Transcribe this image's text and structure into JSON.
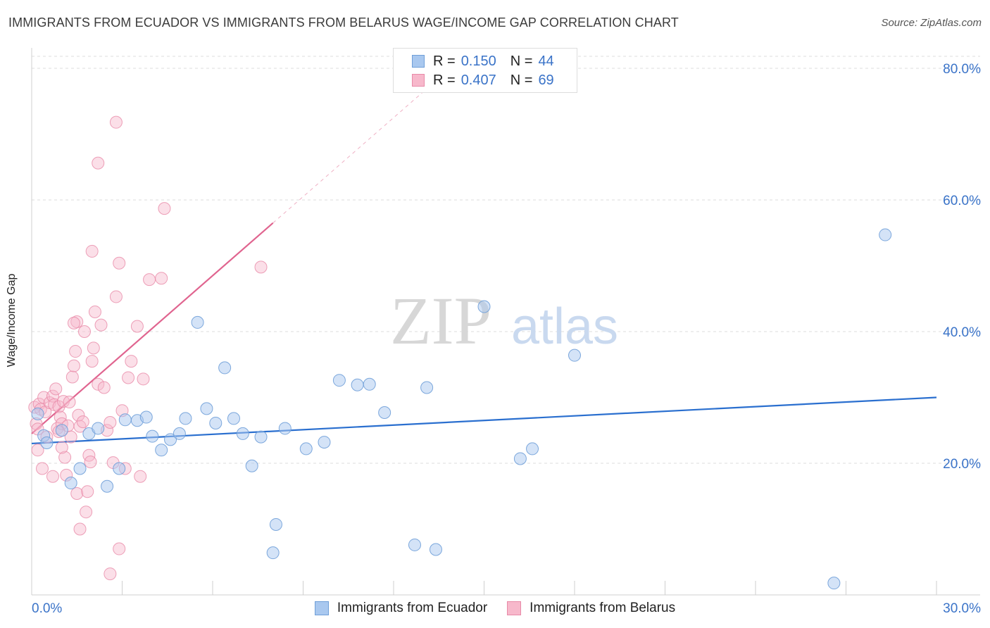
{
  "title": "IMMIGRANTS FROM ECUADOR VS IMMIGRANTS FROM BELARUS WAGE/INCOME GAP CORRELATION CHART",
  "source": "Source: ZipAtlas.com",
  "watermark": {
    "zip": "ZIP",
    "atlas": "atlas"
  },
  "legend_top": {
    "rows": [
      {
        "r_label": "R =",
        "r_value": "0.150",
        "n_label": "N =",
        "n_value": "44"
      },
      {
        "r_label": "R =",
        "r_value": "0.407",
        "n_label": "N =",
        "n_value": "69"
      }
    ]
  },
  "legend_bottom": [
    "Immigrants from Ecuador",
    "Immigrants from Belarus"
  ],
  "chart_data": {
    "type": "scatter",
    "title": "IMMIGRANTS FROM ECUADOR VS IMMIGRANTS FROM BELARUS WAGE/INCOME GAP CORRELATION CHART",
    "xlabel": "",
    "ylabel": "Wage/Income Gap",
    "xlim": [
      0,
      30
    ],
    "ylim": [
      0,
      80
    ],
    "x_tick_labels": [
      {
        "value": 0,
        "label": "0.0%"
      },
      {
        "value": 30,
        "label": "30.0%"
      }
    ],
    "y_tick_labels": [
      {
        "value": 20,
        "label": "20.0%"
      },
      {
        "value": 40,
        "label": "40.0%"
      },
      {
        "value": 60,
        "label": "60.0%"
      },
      {
        "value": 80,
        "label": "80.0%"
      }
    ],
    "colors": {
      "ecuador_fill": "#a9c8ef",
      "ecuador_stroke": "#6f9fd8",
      "ecuador_line": "#2a6fcf",
      "belarus_fill": "#f7b8cb",
      "belarus_stroke": "#e88aa8",
      "belarus_line": "#e0648f"
    },
    "series": [
      {
        "name": "Immigrants from Ecuador",
        "R": 0.15,
        "N": 44,
        "trend": {
          "x0": 0,
          "y0": 23.0,
          "x1": 30,
          "y1": 30.0
        },
        "points": [
          [
            0.2,
            27.5
          ],
          [
            0.4,
            24.2
          ],
          [
            0.5,
            23.1
          ],
          [
            1.0,
            25.0
          ],
          [
            1.6,
            19.2
          ],
          [
            1.9,
            24.5
          ],
          [
            2.2,
            25.3
          ],
          [
            2.5,
            16.5
          ],
          [
            2.9,
            19.2
          ],
          [
            3.1,
            26.6
          ],
          [
            3.5,
            26.5
          ],
          [
            3.8,
            27.0
          ],
          [
            4.0,
            24.1
          ],
          [
            4.3,
            22.0
          ],
          [
            4.6,
            23.6
          ],
          [
            4.9,
            24.5
          ],
          [
            5.1,
            26.8
          ],
          [
            5.5,
            41.4
          ],
          [
            5.8,
            28.3
          ],
          [
            6.1,
            26.1
          ],
          [
            6.4,
            34.5
          ],
          [
            6.7,
            26.8
          ],
          [
            7.0,
            24.5
          ],
          [
            7.3,
            19.6
          ],
          [
            7.6,
            24.0
          ],
          [
            8.1,
            10.7
          ],
          [
            8.4,
            25.3
          ],
          [
            9.1,
            22.2
          ],
          [
            9.7,
            23.2
          ],
          [
            10.2,
            32.6
          ],
          [
            10.8,
            31.9
          ],
          [
            11.2,
            32.0
          ],
          [
            11.7,
            27.7
          ],
          [
            12.7,
            7.6
          ],
          [
            13.1,
            31.5
          ],
          [
            13.4,
            6.9
          ],
          [
            15.0,
            43.8
          ],
          [
            16.2,
            20.7
          ],
          [
            16.6,
            22.2
          ],
          [
            18.0,
            36.4
          ],
          [
            26.6,
            1.8
          ],
          [
            28.3,
            54.7
          ],
          [
            1.3,
            17.0
          ],
          [
            8.0,
            6.4
          ]
        ]
      },
      {
        "name": "Immigrants from Belarus",
        "R": 0.407,
        "N": 69,
        "trend": {
          "x0": 0,
          "y0": 24.5,
          "x1": 8.0,
          "y1": 56.5
        },
        "trend_dashed_to": {
          "x": 14.0,
          "y": 80.5
        },
        "points": [
          [
            0.1,
            28.5
          ],
          [
            0.15,
            26.0
          ],
          [
            0.2,
            25.2
          ],
          [
            0.2,
            22.0
          ],
          [
            0.25,
            29.0
          ],
          [
            0.3,
            28.2
          ],
          [
            0.35,
            19.2
          ],
          [
            0.4,
            30.0
          ],
          [
            0.45,
            27.8
          ],
          [
            0.5,
            24.0
          ],
          [
            0.6,
            29.2
          ],
          [
            0.7,
            30.2
          ],
          [
            0.75,
            28.9
          ],
          [
            0.8,
            31.3
          ],
          [
            0.85,
            25.3
          ],
          [
            0.9,
            28.6
          ],
          [
            0.95,
            27.0
          ],
          [
            1.0,
            26.0
          ],
          [
            1.05,
            29.4
          ],
          [
            1.1,
            20.9
          ],
          [
            1.15,
            18.2
          ],
          [
            1.2,
            25.7
          ],
          [
            1.25,
            29.3
          ],
          [
            1.3,
            24.0
          ],
          [
            1.35,
            33.1
          ],
          [
            1.4,
            34.8
          ],
          [
            1.45,
            37.0
          ],
          [
            1.5,
            15.4
          ],
          [
            1.55,
            27.3
          ],
          [
            1.6,
            25.6
          ],
          [
            1.7,
            26.3
          ],
          [
            1.75,
            40.0
          ],
          [
            1.8,
            12.6
          ],
          [
            1.85,
            15.7
          ],
          [
            1.9,
            21.2
          ],
          [
            1.95,
            20.2
          ],
          [
            2.0,
            35.5
          ],
          [
            2.05,
            37.5
          ],
          [
            2.1,
            43.0
          ],
          [
            2.2,
            32.0
          ],
          [
            2.3,
            41.0
          ],
          [
            2.4,
            31.5
          ],
          [
            2.5,
            25.0
          ],
          [
            2.6,
            26.2
          ],
          [
            2.7,
            20.1
          ],
          [
            2.8,
            45.3
          ],
          [
            2.9,
            7.0
          ],
          [
            3.0,
            28.0
          ],
          [
            3.1,
            19.2
          ],
          [
            3.2,
            33.0
          ],
          [
            3.3,
            35.5
          ],
          [
            3.5,
            40.8
          ],
          [
            3.7,
            32.8
          ],
          [
            3.9,
            47.9
          ],
          [
            4.3,
            48.1
          ],
          [
            4.4,
            58.7
          ],
          [
            3.6,
            18.0
          ],
          [
            2.6,
            3.2
          ],
          [
            2.8,
            71.8
          ],
          [
            2.2,
            65.6
          ],
          [
            1.5,
            41.5
          ],
          [
            1.6,
            10.0
          ],
          [
            1.4,
            41.3
          ],
          [
            0.7,
            18.0
          ],
          [
            1.0,
            22.4
          ],
          [
            0.9,
            24.8
          ],
          [
            7.6,
            49.8
          ],
          [
            2.0,
            52.2
          ],
          [
            2.9,
            50.4
          ]
        ]
      }
    ]
  }
}
